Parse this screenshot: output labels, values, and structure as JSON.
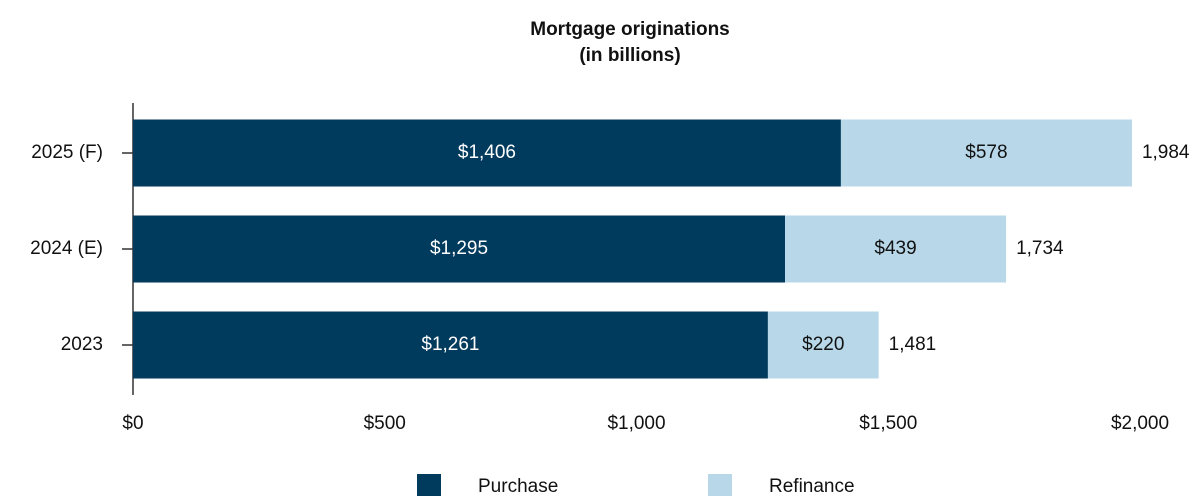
{
  "chart_data": {
    "type": "stacked-bar-horizontal",
    "title": "Mortgage originations",
    "subtitle": "(in billions)",
    "categories": [
      "2025 (F)",
      "2024 (E)",
      "2023"
    ],
    "series": [
      {
        "name": "Purchase",
        "color": "#003a5d",
        "values": [
          1406,
          1295,
          1261
        ],
        "value_labels": [
          "$1,406",
          "$1,295",
          "$1,261"
        ]
      },
      {
        "name": "Refinance",
        "color": "#b8d8ea",
        "values": [
          578,
          439,
          220
        ],
        "value_labels": [
          "$578",
          "$439",
          "$220"
        ]
      }
    ],
    "totals": {
      "values": [
        1984,
        1734,
        1481
      ],
      "value_labels": [
        "1,984",
        "1,734",
        "1,481"
      ]
    },
    "xlim": [
      0,
      2000
    ],
    "xticks": [
      {
        "value": 0,
        "label": "$0"
      },
      {
        "value": 500,
        "label": "$500"
      },
      {
        "value": 1000,
        "label": "$1,000"
      },
      {
        "value": 1500,
        "label": "$1,500"
      },
      {
        "value": 2000,
        "label": "$2,000"
      }
    ],
    "legend": "bottom"
  }
}
